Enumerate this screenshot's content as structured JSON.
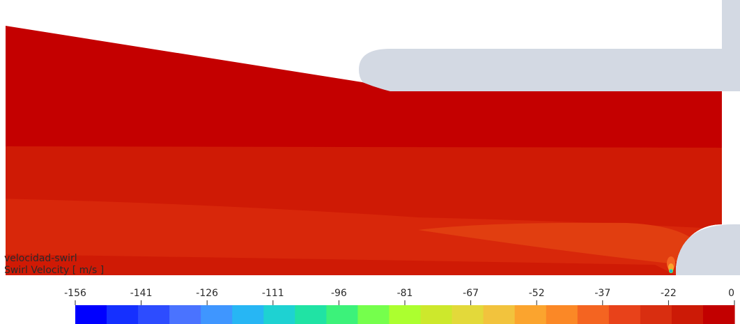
{
  "legend": {
    "title": "velocidad-swirl",
    "variable": "Swirl Velocity [ m/s ]",
    "tick_labels": [
      "-156",
      "-141",
      "-126",
      "-111",
      "-96",
      "-81",
      "-67",
      "-52",
      "-37",
      "-22",
      "0"
    ],
    "colors": [
      "#0000ff",
      "#1530ff",
      "#2d4cff",
      "#4a73ff",
      "#3f96ff",
      "#27b6f4",
      "#1ed2d2",
      "#20e3a4",
      "#3cf27a",
      "#75ff4c",
      "#acff2f",
      "#cde82c",
      "#e3d93a",
      "#f2c33d",
      "#fba42e",
      "#fb8826",
      "#f46421",
      "#e8421a",
      "#d92e10",
      "#cc1a06",
      "#c20000"
    ]
  },
  "contour": {
    "level_colors": {
      "top": "#c40000",
      "band2": "#cf1a05",
      "band3": "#d8270a",
      "band4": "#e13e10",
      "hotspot": "#fb8826"
    },
    "wall_color": "#d3d9e3"
  }
}
